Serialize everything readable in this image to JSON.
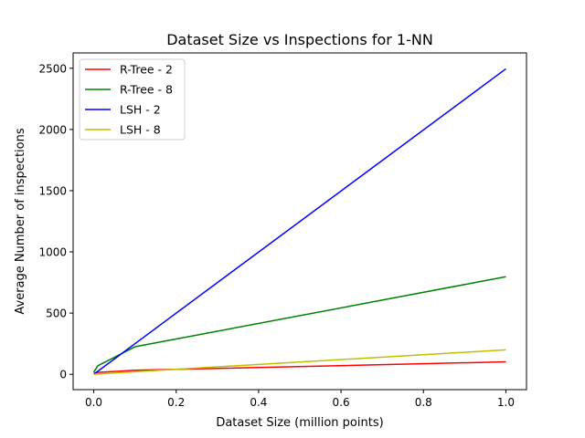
{
  "chart_data": {
    "type": "line",
    "title": "Dataset Size vs Inspections for 1-NN",
    "xlabel": "Dataset Size (million points)",
    "ylabel": "Average Number of inspections",
    "xlim": [
      -0.05,
      1.05
    ],
    "ylim": [
      -125,
      2625
    ],
    "xticks": [
      0.0,
      0.2,
      0.4,
      0.6,
      0.8,
      1.0
    ],
    "xtick_labels": [
      "0.0",
      "0.2",
      "0.4",
      "0.6",
      "0.8",
      "1.0"
    ],
    "yticks": [
      0,
      500,
      1000,
      1500,
      2000,
      2500
    ],
    "ytick_labels": [
      "0",
      "500",
      "1000",
      "1500",
      "2000",
      "2500"
    ],
    "grid": false,
    "legend_position": "top-left",
    "series": [
      {
        "name": "R-Tree - 2",
        "color": "#ff0000",
        "x": [
          0.0,
          0.01,
          0.1,
          1.0
        ],
        "values": [
          8,
          16,
          33,
          102
        ]
      },
      {
        "name": "R-Tree - 8",
        "color": "#008000",
        "x": [
          0.0,
          0.01,
          0.1,
          1.0
        ],
        "values": [
          18,
          70,
          225,
          797
        ]
      },
      {
        "name": "LSH - 2",
        "color": "#0000ff",
        "x": [
          0.0,
          0.01,
          0.1,
          1.0
        ],
        "values": [
          3,
          25,
          250,
          2495
        ]
      },
      {
        "name": "LSH - 8",
        "color": "#bfbf00",
        "x": [
          0.0,
          0.01,
          0.1,
          1.0
        ],
        "values": [
          1,
          3,
          21,
          200
        ]
      }
    ]
  }
}
